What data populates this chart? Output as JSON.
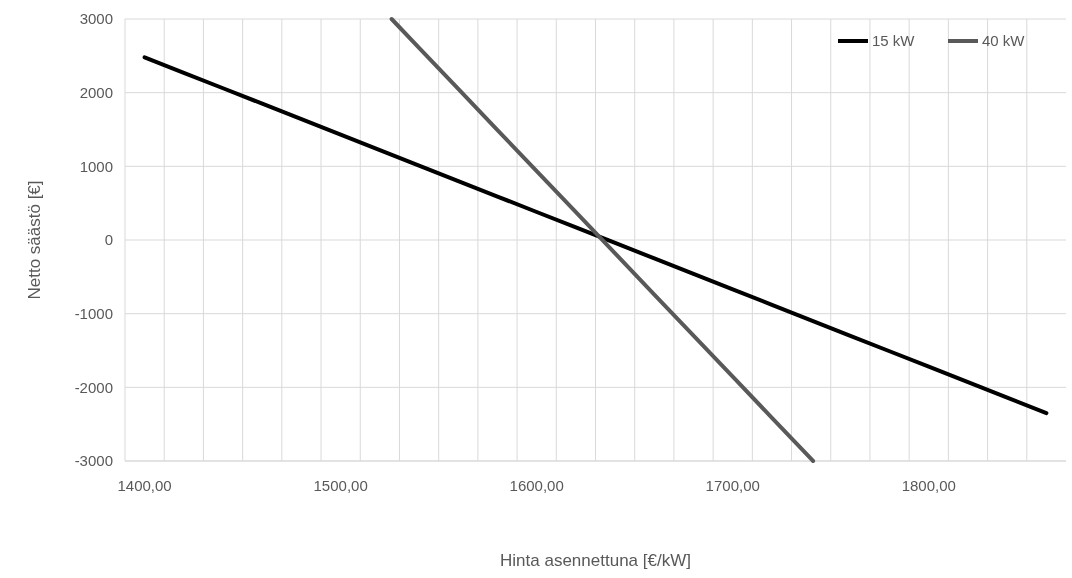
{
  "chart_data": {
    "type": "line",
    "xlabel": "Hinta asennettuna [€/kW]",
    "ylabel": "Netto säästö [€]",
    "xlim": [
      1390,
      1870
    ],
    "ylim": [
      -3000,
      3000
    ],
    "xticks": [
      {
        "value": 1390,
        "label": null
      },
      {
        "value": 1400,
        "label": "1400,00"
      },
      {
        "value": 1410,
        "label": null
      },
      {
        "value": 1430,
        "label": null
      },
      {
        "value": 1450,
        "label": null
      },
      {
        "value": 1470,
        "label": null
      },
      {
        "value": 1490,
        "label": null
      },
      {
        "value": 1500,
        "label": "1500,00"
      },
      {
        "value": 1510,
        "label": null
      },
      {
        "value": 1530,
        "label": null
      },
      {
        "value": 1550,
        "label": null
      },
      {
        "value": 1570,
        "label": null
      },
      {
        "value": 1590,
        "label": null
      },
      {
        "value": 1600,
        "label": "1600,00"
      },
      {
        "value": 1610,
        "label": null
      },
      {
        "value": 1630,
        "label": null
      },
      {
        "value": 1650,
        "label": null
      },
      {
        "value": 1670,
        "label": null
      },
      {
        "value": 1690,
        "label": null
      },
      {
        "value": 1700,
        "label": "1700,00"
      },
      {
        "value": 1710,
        "label": null
      },
      {
        "value": 1730,
        "label": null
      },
      {
        "value": 1750,
        "label": null
      },
      {
        "value": 1770,
        "label": null
      },
      {
        "value": 1790,
        "label": null
      },
      {
        "value": 1800,
        "label": "1800,00"
      },
      {
        "value": 1810,
        "label": null
      },
      {
        "value": 1830,
        "label": null
      },
      {
        "value": 1850,
        "label": null
      }
    ],
    "yticks": [
      -3000,
      -2000,
      -1000,
      0,
      1000,
      2000,
      3000
    ],
    "grid": true,
    "legend": "top right",
    "marker": "none",
    "line_style": "solid",
    "series": [
      {
        "name": "15 kW",
        "color": "#000000",
        "x": [
          1400,
          1420,
          1440,
          1460,
          1480,
          1500,
          1520,
          1540,
          1560,
          1580,
          1600,
          1620,
          1640,
          1660,
          1680,
          1700,
          1720,
          1740,
          1760,
          1780,
          1800,
          1820,
          1840,
          1860
        ],
        "values": [
          2480,
          2270,
          2060,
          1850,
          1640,
          1430,
          1220,
          1010,
          800,
          590,
          380,
          170,
          -40,
          -250,
          -460,
          -670,
          -880,
          -1090,
          -1300,
          -1510,
          -1720,
          -1930,
          -2140,
          -2350
        ]
      },
      {
        "name": "40 kW",
        "color": "#595959",
        "x": [
          1526,
          1540,
          1560,
          1580,
          1600,
          1620,
          1640,
          1660,
          1680,
          1700,
          1720,
          1740,
          1741
        ],
        "values": [
          3000,
          2609,
          2051,
          1493,
          935,
          377,
          -181,
          -740,
          -1298,
          -1856,
          -2414,
          -2972,
          -3000
        ]
      }
    ]
  }
}
